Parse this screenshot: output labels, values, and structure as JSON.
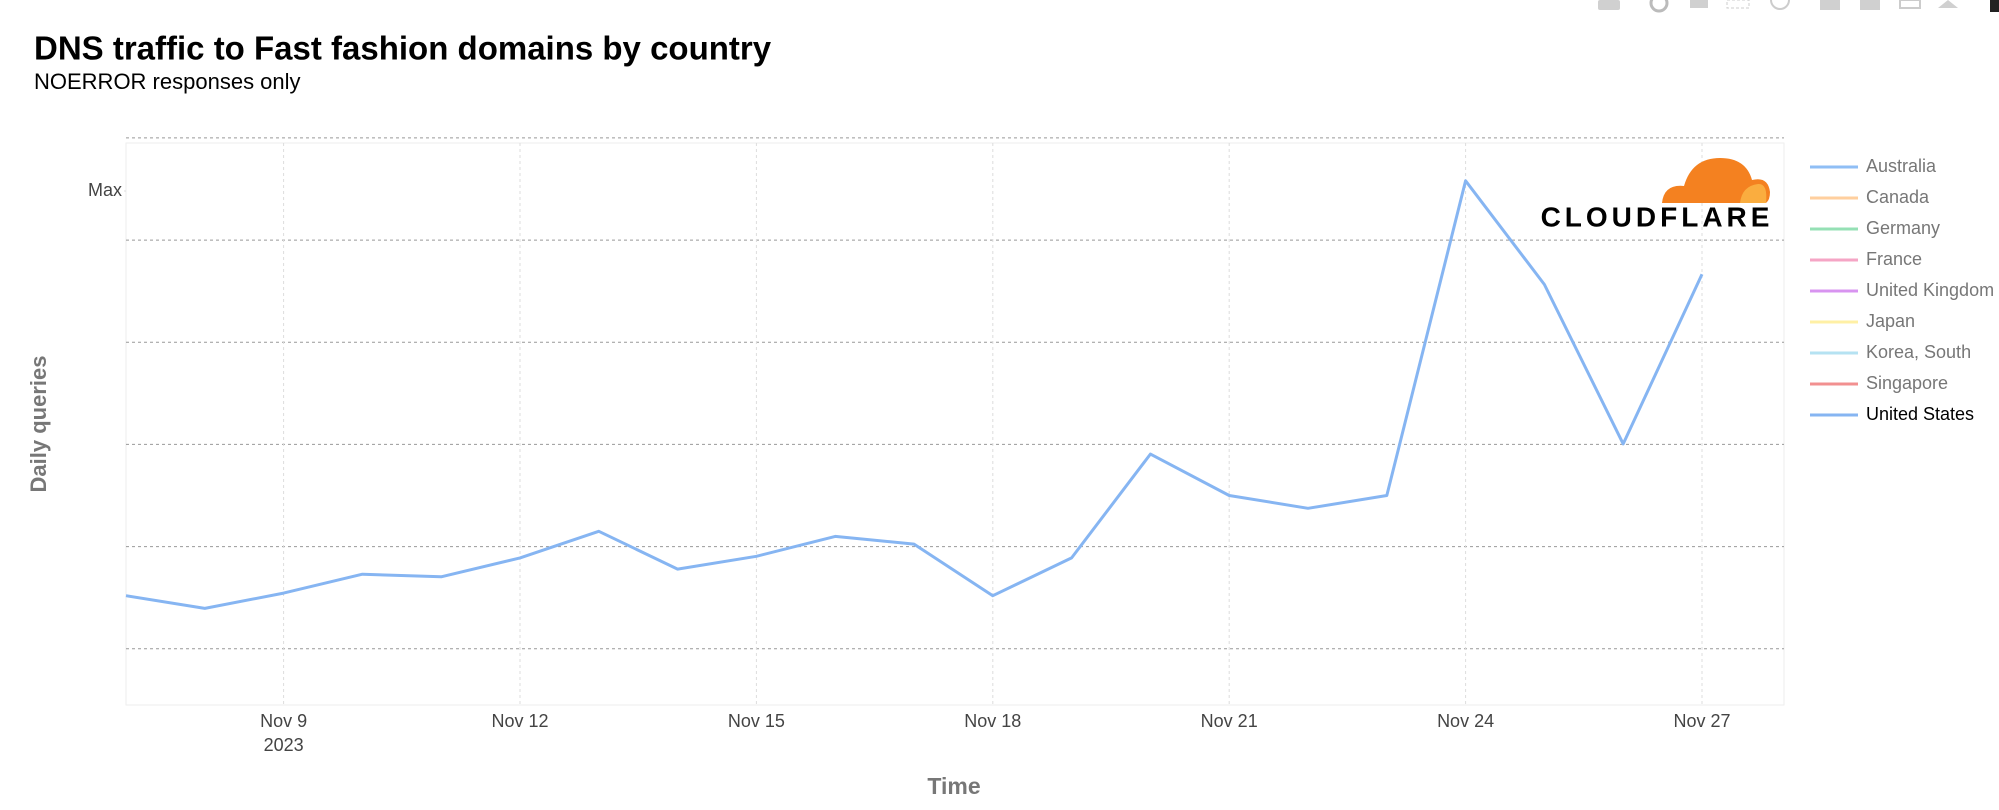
{
  "chart_data": {
    "type": "line",
    "title": "DNS traffic to Fast fashion domains by country",
    "subtitle": "NOERROR responses only",
    "x_axis_label": "Time",
    "y_axis_label": "Daily queries",
    "year_label": "2023",
    "logo_text": "CLOUDFLARE",
    "categories": [
      null,
      null,
      "Nov 9",
      null,
      null,
      "Nov 12",
      null,
      null,
      "Nov 15",
      null,
      null,
      "Nov 18",
      null,
      null,
      "Nov 21",
      null,
      null,
      "Nov 24",
      null,
      null,
      "Nov 27"
    ],
    "ylim": [
      -0.11,
      0.99
    ],
    "yticks": [
      {
        "value": 0.896,
        "label": "Max"
      }
    ],
    "ygrid": [
      0,
      0.2,
      0.4,
      0.6,
      0.8,
      1.0
    ],
    "grid": true,
    "legend": "right",
    "series": [
      {
        "name": "Australia",
        "color": "#8fbef5",
        "values": [
          null,
          null,
          null,
          null,
          null,
          null,
          null,
          null,
          null,
          null,
          null,
          null,
          null,
          null,
          null,
          null,
          null,
          null,
          null,
          null,
          null
        ]
      },
      {
        "name": "Canada",
        "color": "#ffcf9e",
        "values": [
          null,
          null,
          null,
          null,
          null,
          null,
          null,
          null,
          null,
          null,
          null,
          null,
          null,
          null,
          null,
          null,
          null,
          null,
          null,
          null,
          null
        ]
      },
      {
        "name": "Germany",
        "color": "#95e0b5",
        "values": [
          null,
          null,
          null,
          null,
          null,
          null,
          null,
          null,
          null,
          null,
          null,
          null,
          null,
          null,
          null,
          null,
          null,
          null,
          null,
          null,
          null
        ]
      },
      {
        "name": "France",
        "color": "#f5a5c5",
        "values": [
          null,
          null,
          null,
          null,
          null,
          null,
          null,
          null,
          null,
          null,
          null,
          null,
          null,
          null,
          null,
          null,
          null,
          null,
          null,
          null,
          null
        ]
      },
      {
        "name": "United Kingdom",
        "color": "#d894f0",
        "values": [
          null,
          null,
          null,
          null,
          null,
          null,
          null,
          null,
          null,
          null,
          null,
          null,
          null,
          null,
          null,
          null,
          null,
          null,
          null,
          null,
          null
        ]
      },
      {
        "name": "Japan",
        "color": "#fff0a5",
        "values": [
          null,
          null,
          null,
          null,
          null,
          null,
          null,
          null,
          null,
          null,
          null,
          null,
          null,
          null,
          null,
          null,
          null,
          null,
          null,
          null,
          null
        ]
      },
      {
        "name": "Korea, South",
        "color": "#b5e2f2",
        "values": [
          null,
          null,
          null,
          null,
          null,
          null,
          null,
          null,
          null,
          null,
          null,
          null,
          null,
          null,
          null,
          null,
          null,
          null,
          null,
          null,
          null
        ]
      },
      {
        "name": "Singapore",
        "color": "#f29090",
        "values": [
          null,
          null,
          null,
          null,
          null,
          null,
          null,
          null,
          null,
          null,
          null,
          null,
          null,
          null,
          null,
          null,
          null,
          null,
          null,
          null,
          null
        ]
      },
      {
        "name": "United States",
        "color": "#86b5f2",
        "values": [
          0.104,
          0.079,
          0.109,
          0.146,
          0.141,
          0.178,
          0.23,
          0.156,
          0.181,
          0.22,
          0.205,
          0.104,
          0.178,
          0.381,
          0.3,
          0.275,
          0.3,
          0.916,
          0.713,
          0.401,
          0.733
        ]
      }
    ]
  }
}
